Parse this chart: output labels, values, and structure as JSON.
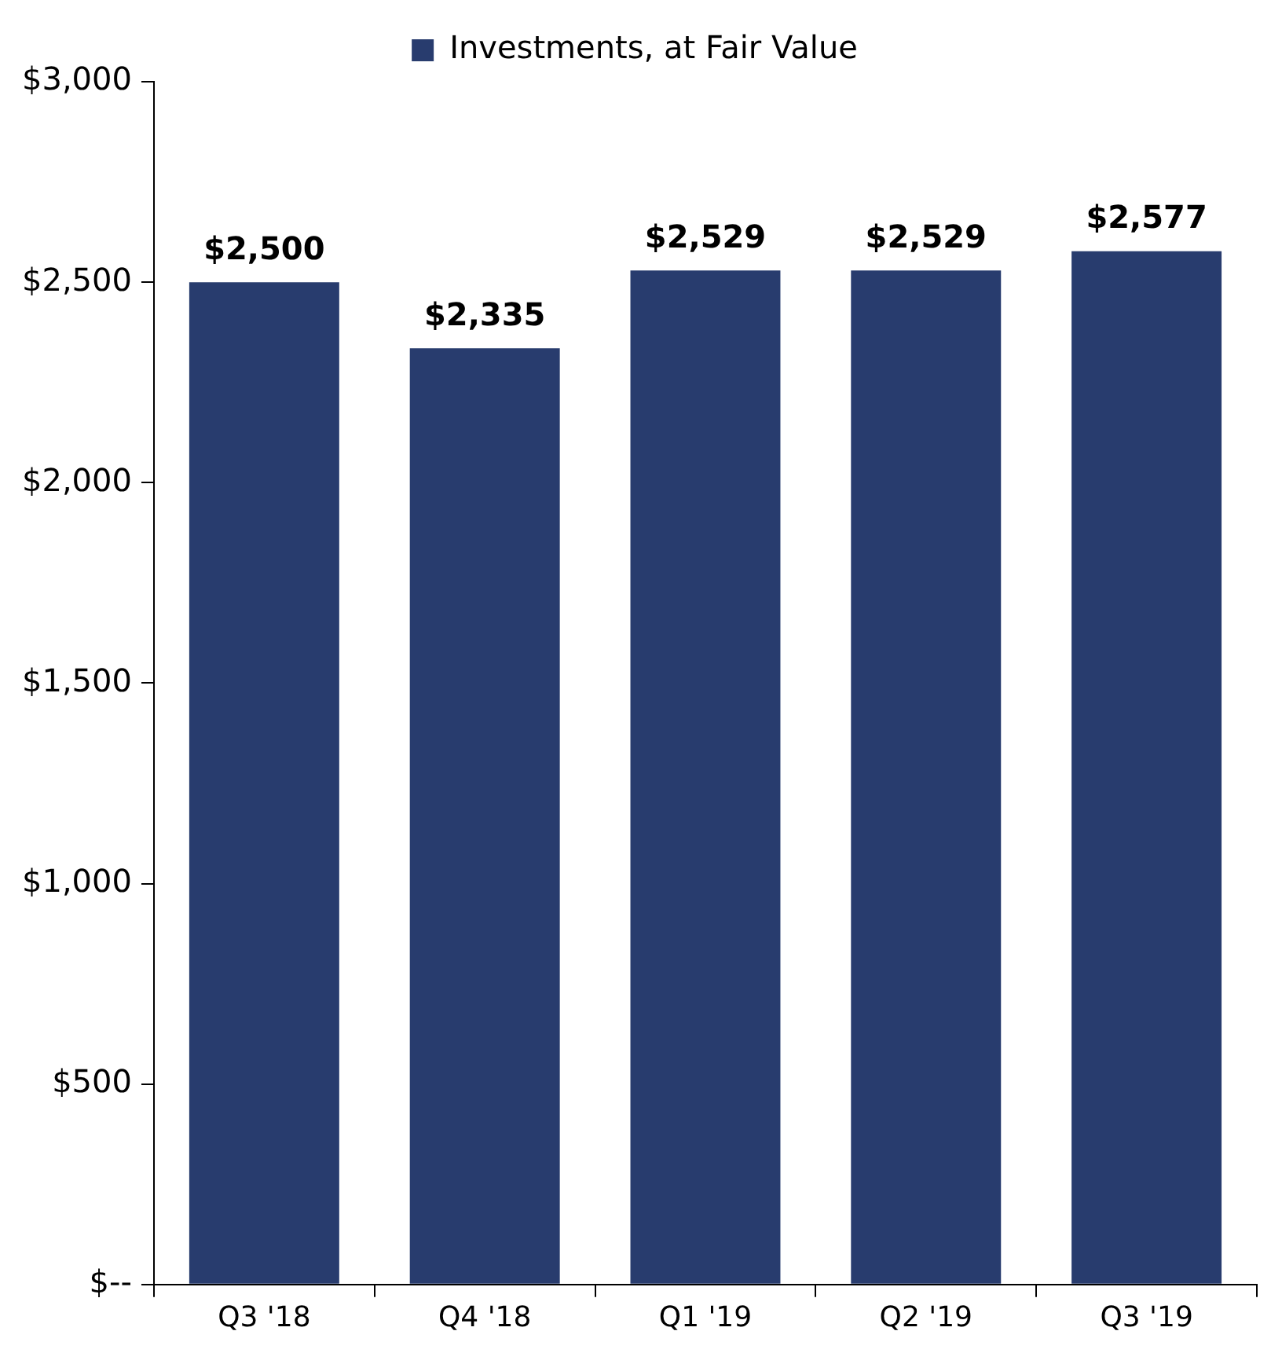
{
  "chart_data": {
    "type": "bar",
    "categories": [
      "Q3 '18",
      "Q4 '18",
      "Q1 '19",
      "Q2 '19",
      "Q3 '19"
    ],
    "series": [
      {
        "name": "Investments, at Fair Value",
        "color": "#283c6e",
        "values": [
          2500,
          2335,
          2529,
          2529,
          2577
        ],
        "value_labels": [
          "$2,500",
          "$2,335",
          "$2,529",
          "$2,529",
          "$2,577"
        ]
      }
    ],
    "ylim": [
      0,
      3000
    ],
    "yticks": [
      {
        "value": 0,
        "label": "$--"
      },
      {
        "value": 500,
        "label": "$500"
      },
      {
        "value": 1000,
        "label": "$1,000"
      },
      {
        "value": 1500,
        "label": "$1,500"
      },
      {
        "value": 2000,
        "label": "$2,000"
      },
      {
        "value": 2500,
        "label": "$2,500"
      },
      {
        "value": 3000,
        "label": "$3,000"
      }
    ],
    "legend": "top"
  }
}
